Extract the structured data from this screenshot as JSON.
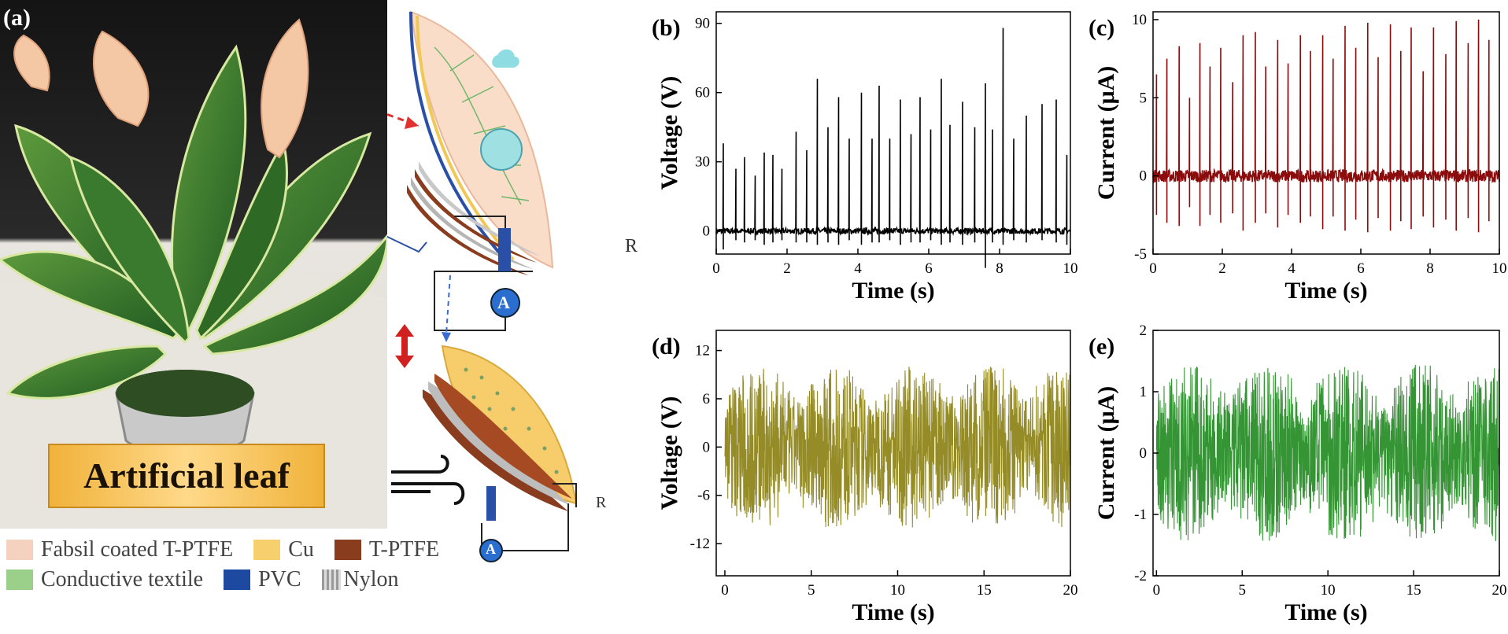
{
  "panel_a": {
    "letter": "(a)",
    "label": "Artificial leaf",
    "resistor_label": "R",
    "ammeter_label": "A"
  },
  "legend": [
    {
      "label": "Fabsil coated T-PTFE",
      "color": "#f5d2bf"
    },
    {
      "label": "Cu",
      "color": "#f7d06e"
    },
    {
      "label": "T-PTFE",
      "color": "#8a3c1e"
    },
    {
      "label": "Conductive textile",
      "color": "#9bd08a"
    },
    {
      "label": "PVC",
      "color": "#1d4aa0"
    },
    {
      "label": "Nylon",
      "color": "#b8b8b8",
      "icon": "nylon-texture"
    }
  ],
  "chart_data": [
    {
      "id": "b",
      "letter": "(b)",
      "type": "line",
      "xlabel": "Time (s)",
      "ylabel": "Voltage (V)",
      "xlim": [
        0,
        10
      ],
      "ylim": [
        -10,
        95
      ],
      "xticks": [
        "0",
        "2",
        "4",
        "6",
        "8",
        "10"
      ],
      "yticks": [
        "0",
        "30",
        "60",
        "90"
      ],
      "color": "#000000",
      "series": [
        {
          "x": [
            0.2,
            0.55,
            0.8,
            1.1,
            1.35,
            1.6,
            1.85,
            2.25,
            2.55,
            2.85,
            3.15,
            3.45,
            3.75,
            4.1,
            4.4,
            4.6,
            4.9,
            5.2,
            5.5,
            5.75,
            6.05,
            6.35,
            6.6,
            6.95,
            7.3,
            7.6,
            7.8,
            8.1,
            8.4,
            8.75,
            9.2,
            9.6,
            9.9
          ],
          "y": [
            38,
            27,
            32,
            24,
            34,
            33,
            27,
            43,
            35,
            66,
            45,
            58,
            40,
            60,
            40,
            63,
            40,
            57,
            42,
            58,
            44,
            66,
            46,
            56,
            45,
            64,
            44,
            88,
            40,
            50,
            55,
            57,
            33
          ],
          "neg": [
            -8,
            -4,
            -5,
            -4,
            -6,
            -5,
            -4,
            -5,
            -5,
            -6,
            -5,
            -6,
            -4,
            -6,
            -5,
            -5,
            -4,
            -6,
            -5,
            -5,
            -4,
            -6,
            -5,
            -6,
            -5,
            -16,
            -5,
            -6,
            -4,
            -5,
            -4,
            -5,
            -6
          ]
        }
      ],
      "noise": 2.5
    },
    {
      "id": "c",
      "letter": "(c)",
      "type": "line",
      "xlabel": "Time (s)",
      "ylabel": "Current (μA)",
      "xlim": [
        0,
        10
      ],
      "ylim": [
        -5,
        10.5
      ],
      "xticks": [
        "0",
        "2",
        "4",
        "6",
        "8",
        "10"
      ],
      "yticks": [
        "-5",
        "0",
        "5",
        "10"
      ],
      "color": "#8b0c0c",
      "series": [
        {
          "x": [
            0.1,
            0.4,
            0.75,
            1.05,
            1.35,
            1.65,
            1.95,
            2.3,
            2.6,
            2.95,
            3.25,
            3.6,
            3.9,
            4.25,
            4.55,
            4.9,
            5.2,
            5.55,
            5.85,
            6.2,
            6.5,
            6.85,
            7.15,
            7.45,
            7.8,
            8.1,
            8.45,
            8.75,
            9.1,
            9.4,
            9.7
          ],
          "y": [
            6.5,
            7.5,
            8.3,
            5.0,
            8.5,
            7.0,
            8.2,
            6.0,
            9.0,
            9.2,
            7.0,
            8.7,
            7.2,
            9.0,
            8.0,
            9.0,
            7.5,
            9.6,
            8.2,
            9.8,
            7.6,
            9.7,
            8.0,
            9.5,
            6.7,
            9.5,
            7.8,
            9.9,
            8.5,
            10.0,
            8.7
          ],
          "neg": [
            -2.5,
            -3.0,
            -3.2,
            -2.0,
            -3.2,
            -2.5,
            -3.0,
            -2.4,
            -3.5,
            -3.0,
            -2.4,
            -3.3,
            -2.5,
            -3.0,
            -2.6,
            -3.4,
            -2.6,
            -3.5,
            -2.8,
            -3.6,
            -2.7,
            -3.5,
            -2.9,
            -3.4,
            -2.6,
            -3.3,
            -2.8,
            -3.5,
            -2.7,
            -3.6,
            -2.9
          ]
        }
      ],
      "noise": 0.8
    },
    {
      "id": "d",
      "letter": "(d)",
      "type": "line",
      "xlabel": "Time (s)",
      "ylabel": "Voltage (V)",
      "xlim": [
        -0.5,
        20
      ],
      "ylim": [
        -16,
        14.5
      ],
      "xticks": [
        "0",
        "5",
        "10",
        "15",
        "20"
      ],
      "yticks": [
        "-12",
        "-6",
        "0",
        "6",
        "12"
      ],
      "color": "#8a7f10",
      "amplitude": 10,
      "duration": 20
    },
    {
      "id": "e",
      "letter": "(e)",
      "type": "line",
      "xlabel": "Time (s)",
      "ylabel": "Current (μA)",
      "xlim": [
        -0.2,
        20
      ],
      "ylim": [
        -2,
        2
      ],
      "xticks": [
        "0",
        "5",
        "10",
        "15",
        "20"
      ],
      "yticks": [
        "-2",
        "-1",
        "0",
        "1",
        "2"
      ],
      "color": "#1f8a1f",
      "amplitude": 1.45,
      "duration": 20
    }
  ]
}
